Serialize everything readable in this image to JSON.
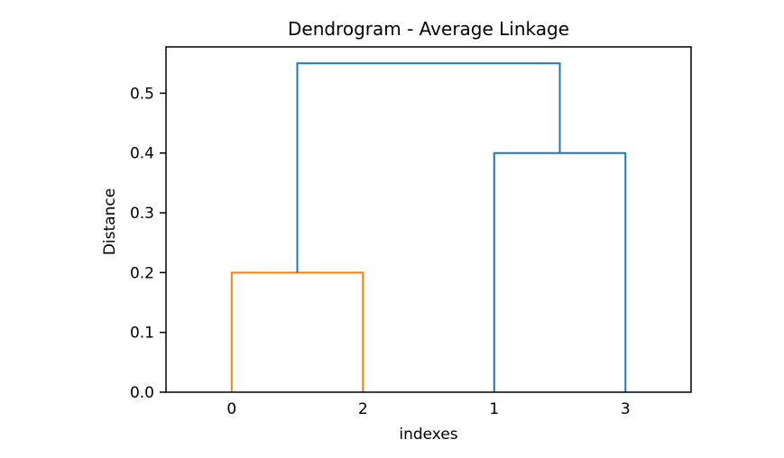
{
  "figure": {
    "background": "#ffffff"
  },
  "chart_data": {
    "type": "dendrogram",
    "title": "Dendrogram - Average Linkage",
    "xlabel": "indexes",
    "ylabel": "Distance",
    "x_tick_labels": [
      "0",
      "2",
      "1",
      "3"
    ],
    "leaf_positions": [
      0.125,
      0.375,
      0.625,
      0.875
    ],
    "y_tick_values": [
      0.0,
      0.1,
      0.2,
      0.3,
      0.4,
      0.5
    ],
    "y_tick_labels": [
      "0.0",
      "0.1",
      "0.2",
      "0.3",
      "0.4",
      "0.5"
    ],
    "ylim": [
      0,
      0.5775
    ],
    "grid": false,
    "legend": null,
    "links": [
      {
        "merges": [
          "0",
          "2"
        ],
        "left_x": 0.125,
        "right_x": 0.375,
        "left_top": 0.0,
        "right_top": 0.0,
        "height": 0.2,
        "color": "#ff7f0e"
      },
      {
        "merges": [
          "1",
          "3"
        ],
        "left_x": 0.625,
        "right_x": 0.875,
        "left_top": 0.0,
        "right_top": 0.0,
        "height": 0.4,
        "color": "#1f77b4"
      },
      {
        "merges": [
          "0+2",
          "1+3"
        ],
        "left_x": 0.25,
        "right_x": 0.75,
        "left_top": 0.2,
        "right_top": 0.4,
        "height": 0.55,
        "color": "#1f77b4"
      }
    ],
    "colors": {
      "cluster_1": "#ff7f0e",
      "above_threshold": "#1f77b4",
      "axis": "#000000",
      "text": "#000000"
    }
  }
}
